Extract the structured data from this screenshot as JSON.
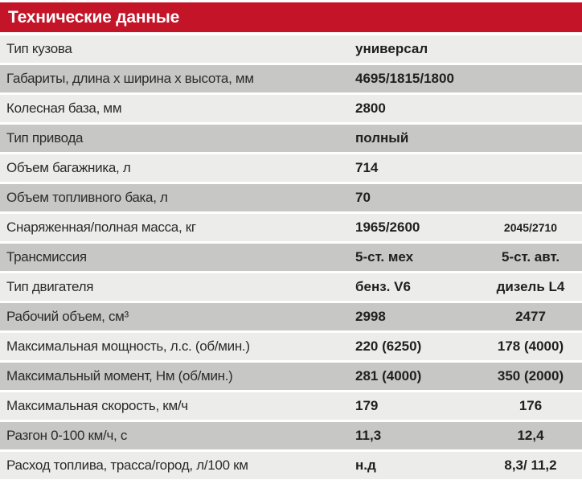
{
  "header": {
    "title": "Технические данные"
  },
  "colors": {
    "accent_red": "#c41428",
    "row_light": "#ececeb",
    "row_dark": "#c7c7c5"
  },
  "columns": {
    "label": "characteristic",
    "value1": "variant-1 (benz V6, manual)",
    "value2": "variant-2 (diesel L4, auto)"
  },
  "rows": [
    {
      "label": "Тип кузова",
      "v1": "универсал",
      "v2": ""
    },
    {
      "label": "Габариты, длина х ширина х высота, мм",
      "v1": "4695/1815/1800",
      "v2": ""
    },
    {
      "label": "Колесная база, мм",
      "v1": "2800",
      "v2": ""
    },
    {
      "label": "Тип привода",
      "v1": "полный",
      "v2": ""
    },
    {
      "label": "Объем багажника, л",
      "v1": "714",
      "v2": ""
    },
    {
      "label": "Объем топливного бака, л",
      "v1": "70",
      "v2": ""
    },
    {
      "label": "Снаряженная/полная масса, кг",
      "v1": "1965/2600",
      "v2": "2045/2710"
    },
    {
      "label": "Трансмиссия",
      "v1": "5-ст. мех",
      "v2": "5-ст. авт."
    },
    {
      "label": "Тип двигателя",
      "v1": "бенз. V6",
      "v2": "дизель L4"
    },
    {
      "label": "Рабочий объем, см³",
      "v1": "2998",
      "v2": "2477"
    },
    {
      "label": "Максимальная мощность, л.с. (об/мин.)",
      "v1": "220 (6250)",
      "v2": "178 (4000)"
    },
    {
      "label": "Максимальный момент, Нм (об/мин.)",
      "v1": "281 (4000)",
      "v2": "350 (2000)"
    },
    {
      "label": "Максимальная скорость, км/ч",
      "v1": "179",
      "v2": "176"
    },
    {
      "label": "Разгон 0-100 км/ч, с",
      "v1": "11,3",
      "v2": "12,4"
    },
    {
      "label": "Расход топлива, трасса/город, л/100 км",
      "v1": "н.д",
      "v2": "8,3/ 11,2"
    }
  ]
}
